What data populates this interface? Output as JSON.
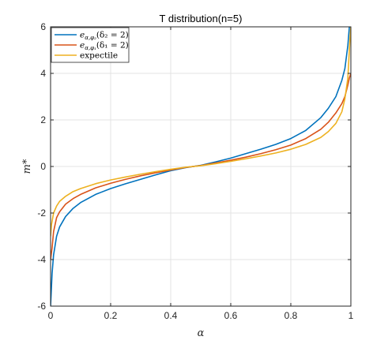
{
  "chart_data": {
    "type": "line",
    "title": "T distribution(n=5)",
    "xlabel": "α",
    "ylabel": "m*",
    "xlim": [
      0,
      1
    ],
    "ylim": [
      -6,
      6
    ],
    "xticks": [
      0,
      0.2,
      0.4,
      0.6,
      0.8,
      1
    ],
    "xtick_labels": [
      "0",
      "0.2",
      "0.4",
      "0.6",
      "0.8",
      "1"
    ],
    "yticks": [
      -6,
      -4,
      -2,
      0,
      2,
      4,
      6
    ],
    "ytick_labels": [
      "-6",
      "-4",
      "-2",
      "0",
      "2",
      "4",
      "6"
    ],
    "grid": true,
    "legend_position": "top-left",
    "series": [
      {
        "name": "e_{α,φ2}(δ2 = 2)",
        "legend_label": "e",
        "legend_sub": "α,φ₂",
        "legend_rest": "(δ₂ = 2)",
        "color": "#0072BD",
        "x": [
          0.0,
          0.005,
          0.01,
          0.02,
          0.03,
          0.05,
          0.075,
          0.1,
          0.15,
          0.2,
          0.25,
          0.3,
          0.35,
          0.4,
          0.45,
          0.5,
          0.55,
          0.6,
          0.65,
          0.7,
          0.75,
          0.8,
          0.85,
          0.9,
          0.925,
          0.95,
          0.97,
          0.98,
          0.99,
          0.995,
          1.0
        ],
        "y": [
          -6.0,
          -4.6,
          -3.8,
          -3.0,
          -2.6,
          -2.15,
          -1.8,
          -1.55,
          -1.2,
          -0.95,
          -0.74,
          -0.55,
          -0.36,
          -0.18,
          -0.05,
          0.05,
          0.2,
          0.36,
          0.55,
          0.74,
          0.95,
          1.2,
          1.55,
          2.1,
          2.5,
          3.0,
          3.7,
          4.2,
          5.2,
          6.0,
          6.0
        ]
      },
      {
        "name": "e_{α,φ1}(δ1 = 2)",
        "legend_label": "e",
        "legend_sub": "α,φ₁",
        "legend_rest": "(δ₁ = 2)",
        "color": "#D95319",
        "x": [
          0.0,
          0.005,
          0.01,
          0.02,
          0.03,
          0.05,
          0.075,
          0.1,
          0.15,
          0.2,
          0.25,
          0.3,
          0.35,
          0.4,
          0.45,
          0.5,
          0.55,
          0.6,
          0.65,
          0.7,
          0.75,
          0.8,
          0.85,
          0.9,
          0.925,
          0.95,
          0.97,
          0.98,
          0.99,
          0.995,
          1.0
        ],
        "y": [
          -4.0,
          -3.5,
          -2.8,
          -2.2,
          -1.95,
          -1.62,
          -1.38,
          -1.2,
          -0.92,
          -0.72,
          -0.55,
          -0.4,
          -0.27,
          -0.15,
          -0.04,
          0.04,
          0.15,
          0.27,
          0.4,
          0.55,
          0.72,
          0.92,
          1.2,
          1.6,
          1.9,
          2.3,
          2.7,
          3.0,
          3.5,
          3.8,
          4.0
        ]
      },
      {
        "name": "expectile",
        "legend_label": "expectile",
        "legend_sub": "",
        "legend_rest": "",
        "color": "#EDB120",
        "x": [
          0.0,
          0.003,
          0.01,
          0.02,
          0.03,
          0.05,
          0.075,
          0.1,
          0.15,
          0.2,
          0.25,
          0.3,
          0.35,
          0.4,
          0.45,
          0.5,
          0.55,
          0.6,
          0.65,
          0.7,
          0.75,
          0.8,
          0.85,
          0.9,
          0.925,
          0.95,
          0.97,
          0.98,
          0.99,
          0.997,
          1.0
        ],
        "y": [
          -3.0,
          -2.5,
          -2.0,
          -1.7,
          -1.5,
          -1.28,
          -1.08,
          -0.95,
          -0.74,
          -0.58,
          -0.45,
          -0.33,
          -0.22,
          -0.12,
          -0.03,
          0.03,
          0.12,
          0.22,
          0.33,
          0.45,
          0.58,
          0.74,
          0.95,
          1.25,
          1.5,
          1.85,
          2.35,
          2.9,
          3.8,
          5.5,
          6.0
        ]
      }
    ]
  }
}
